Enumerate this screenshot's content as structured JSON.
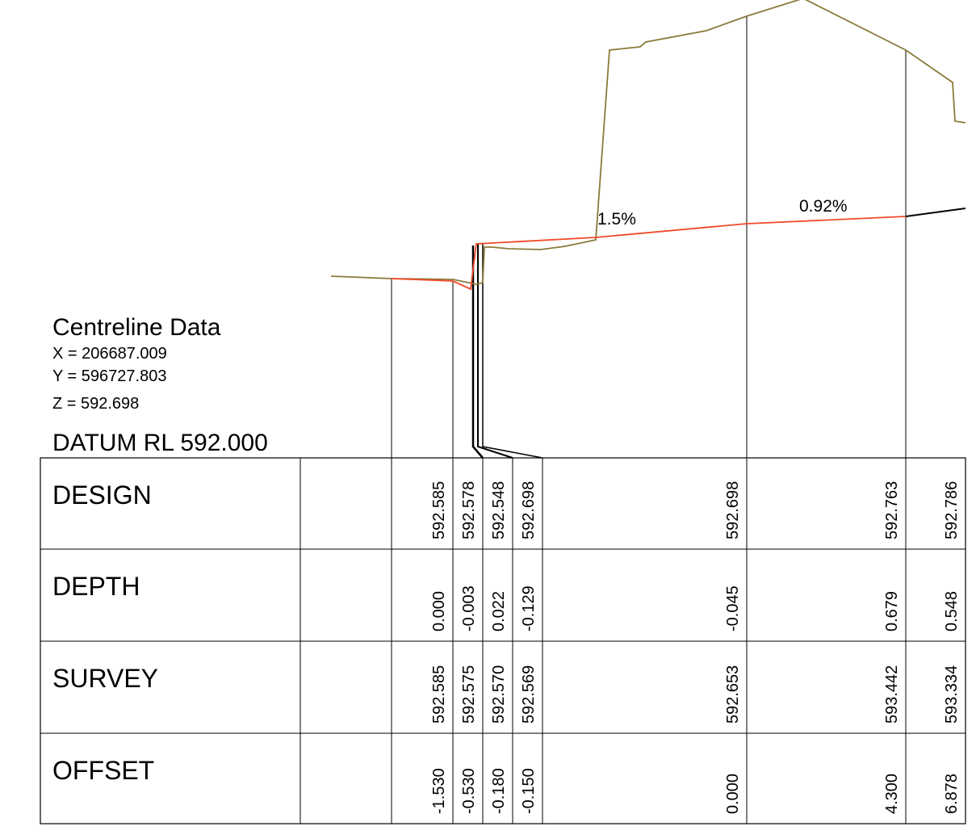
{
  "centreline": {
    "title": "Centreline Data",
    "x": "X = 206687.009",
    "y": "Y = 596727.803",
    "z": "Z = 592.698"
  },
  "datum": "DATUM RL 592.000",
  "grades": [
    "1.5%",
    "0.92%"
  ],
  "table": {
    "rows": [
      {
        "label": "DESIGN",
        "values": [
          "592.585",
          "592.578",
          "592.548",
          "592.698",
          "592.698",
          "592.763",
          "592.786"
        ]
      },
      {
        "label": "DEPTH",
        "values": [
          "0.000",
          "-0.003",
          "0.022",
          "-0.129",
          "-0.045",
          "0.679",
          "0.548"
        ]
      },
      {
        "label": "SURVEY",
        "values": [
          "592.585",
          "592.575",
          "592.570",
          "592.569",
          "592.653",
          "593.442",
          "593.334"
        ]
      },
      {
        "label": "OFFSET",
        "values": [
          "-1.530",
          "-0.530",
          "-0.180",
          "-0.150",
          "0.000",
          "4.300",
          "6.878"
        ]
      }
    ]
  }
}
